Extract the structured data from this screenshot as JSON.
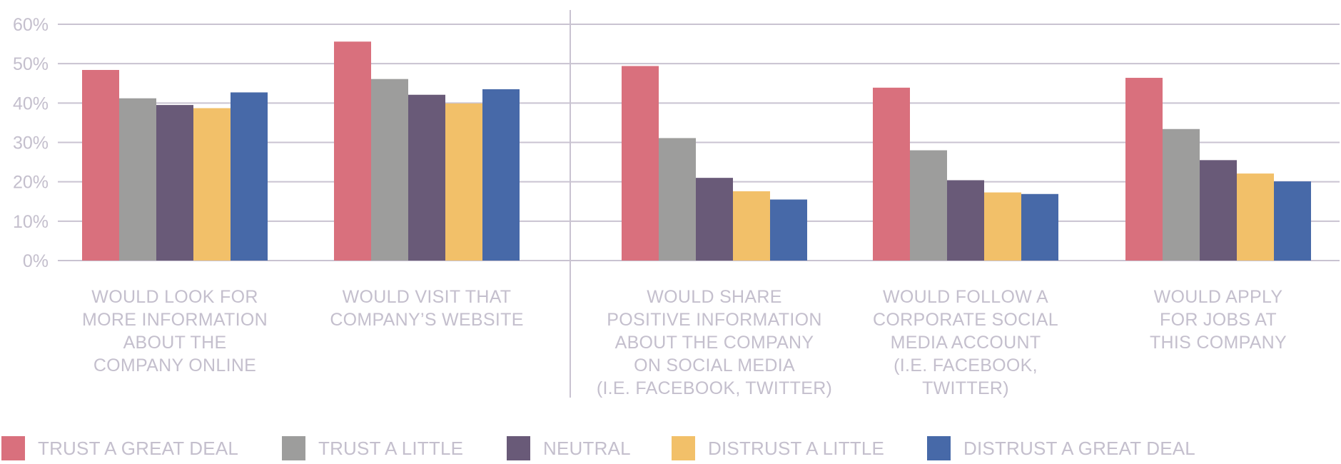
{
  "chart_data": {
    "type": "bar",
    "title": "",
    "xlabel": "",
    "ylabel": "",
    "ylim": [
      0,
      60
    ],
    "yticks": [
      "0%",
      "10%",
      "20%",
      "30%",
      "40%",
      "50%",
      "60%"
    ],
    "ytick_values": [
      0,
      10,
      20,
      30,
      40,
      50,
      60
    ],
    "grid": true,
    "legend_position": "bottom",
    "categories": [
      [
        "WOULD LOOK FOR",
        "MORE INFORMATION",
        "ABOUT THE",
        "COMPANY ONLINE"
      ],
      [
        "WOULD VISIT THAT",
        "COMPANY’S WEBSITE"
      ],
      [
        "WOULD SHARE",
        "POSITIVE INFORMATION",
        "ABOUT THE COMPANY",
        "ON SOCIAL MEDIA",
        "(I.E. FACEBOOK, TWITTER)"
      ],
      [
        "WOULD FOLLOW A",
        "CORPORATE SOCIAL",
        "MEDIA ACCOUNT",
        "(I.E. FACEBOOK,",
        "TWITTER)"
      ],
      [
        "WOULD APPLY",
        "FOR JOBS AT",
        "THIS COMPANY"
      ]
    ],
    "divider_after_category": 1,
    "series": [
      {
        "name": "TRUST A GREAT DEAL",
        "color": "#d9707d",
        "values": [
          48.4,
          55.6,
          49.4,
          43.9,
          46.4
        ]
      },
      {
        "name": "TRUST A LITTLE",
        "color": "#9d9d9c",
        "values": [
          41.2,
          46.1,
          31.1,
          28.0,
          33.4
        ]
      },
      {
        "name": "NEUTRAL",
        "color": "#695a78",
        "values": [
          39.5,
          42.1,
          21.0,
          20.4,
          25.5
        ]
      },
      {
        "name": "DISTRUST A LITTLE",
        "color": "#f2c069",
        "values": [
          38.7,
          39.9,
          17.6,
          17.3,
          22.1
        ]
      },
      {
        "name": "DISTRUST A GREAT DEAL",
        "color": "#4769a8",
        "values": [
          42.7,
          43.5,
          15.5,
          16.9,
          20.1
        ]
      }
    ]
  },
  "colors": {
    "gridline": "#c9c3d1",
    "text": "#c4bfcd"
  }
}
